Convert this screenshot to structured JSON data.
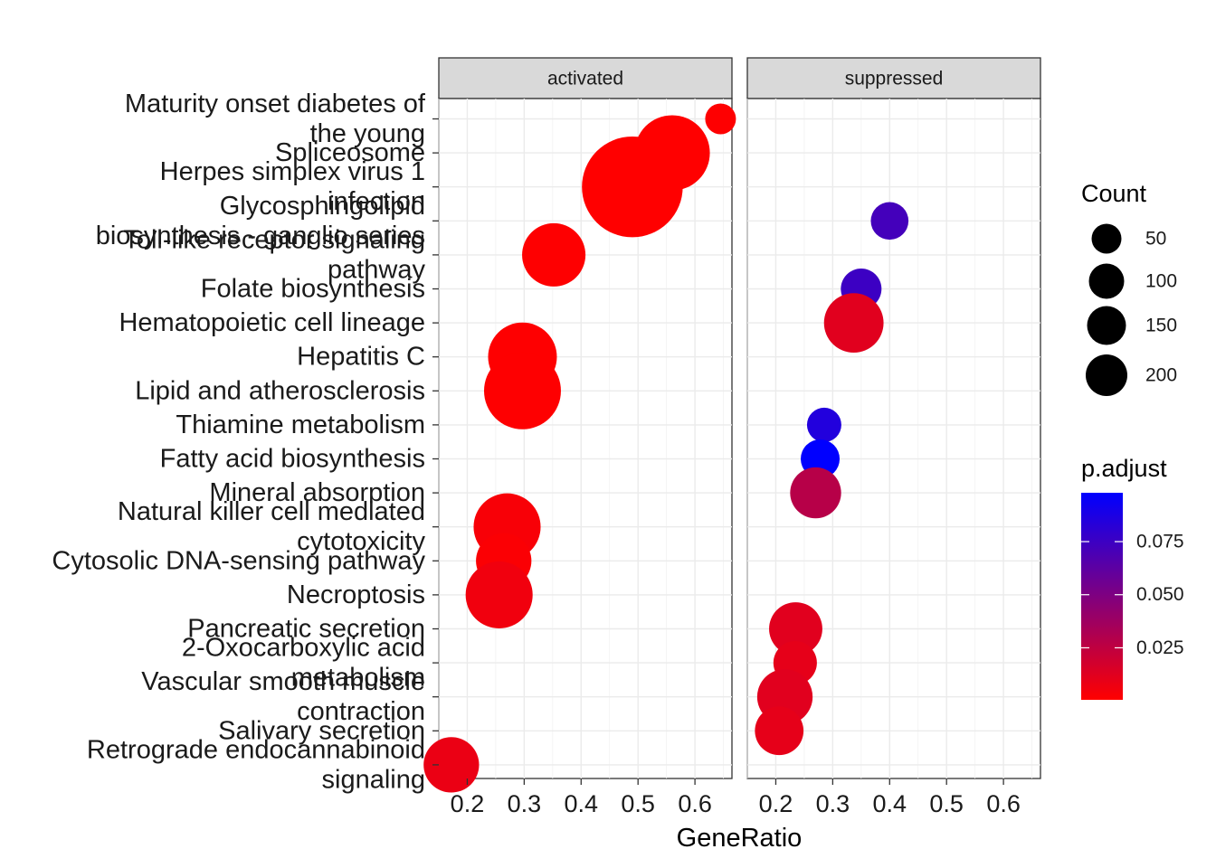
{
  "chart_data": {
    "type": "scatter",
    "title": "",
    "xlabel": "GeneRatio",
    "ylabel": "",
    "xlim": [
      0.15,
      0.665
    ],
    "x_ticks": [
      0.2,
      0.3,
      0.4,
      0.5,
      0.6
    ],
    "x_tick_labels": [
      "0.2",
      "0.3",
      "0.4",
      "0.5",
      "0.6"
    ],
    "grid": true,
    "facets": [
      "activated",
      "suppressed"
    ],
    "categories": [
      [
        "Maturity onset diabetes of",
        "the young"
      ],
      [
        "Spliceosome"
      ],
      [
        "Herpes simplex virus 1",
        "infection"
      ],
      [
        "Glycosphingolipid",
        "biosynthesis - ganglio series"
      ],
      [
        "Toll-like receptor signaling",
        "pathway"
      ],
      [
        "Folate biosynthesis"
      ],
      [
        "Hematopoietic cell lineage"
      ],
      [
        "Hepatitis C"
      ],
      [
        "Lipid and atherosclerosis"
      ],
      [
        "Thiamine metabolism"
      ],
      [
        "Fatty acid biosynthesis"
      ],
      [
        "Mineral absorption"
      ],
      [
        "Natural killer cell mediated",
        "cytotoxicity"
      ],
      [
        "Cytosolic DNA-sensing pathway"
      ],
      [
        "Necroptosis"
      ],
      [
        "Pancreatic secretion"
      ],
      [
        "2-Oxocarboxylic acid",
        "metabolism"
      ],
      [
        "Vascular smooth muscle",
        "contraction"
      ],
      [
        "Salivary secretion"
      ],
      [
        "Retrograde endocannabinoid",
        "signaling"
      ]
    ],
    "points": [
      {
        "facet": "activated",
        "category": 0,
        "x": 0.645,
        "count": 20,
        "p_adjust": 0.001
      },
      {
        "facet": "activated",
        "category": 1,
        "x": 0.56,
        "count": 120,
        "p_adjust": 0.0005
      },
      {
        "facet": "activated",
        "category": 2,
        "x": 0.49,
        "count": 215,
        "p_adjust": 0.0005
      },
      {
        "facet": "activated",
        "category": 4,
        "x": 0.352,
        "count": 85,
        "p_adjust": 0.001
      },
      {
        "facet": "activated",
        "category": 7,
        "x": 0.297,
        "count": 100,
        "p_adjust": 0.0008
      },
      {
        "facet": "activated",
        "category": 8,
        "x": 0.297,
        "count": 125,
        "p_adjust": 0.0008
      },
      {
        "facet": "activated",
        "category": 12,
        "x": 0.27,
        "count": 95,
        "p_adjust": 0.003
      },
      {
        "facet": "activated",
        "category": 13,
        "x": 0.264,
        "count": 65,
        "p_adjust": 0.002
      },
      {
        "facet": "activated",
        "category": 14,
        "x": 0.256,
        "count": 95,
        "p_adjust": 0.006
      },
      {
        "facet": "activated",
        "category": 19,
        "x": 0.172,
        "count": 65,
        "p_adjust": 0.008
      },
      {
        "facet": "suppressed",
        "category": 3,
        "x": 0.4,
        "count": 30,
        "p_adjust": 0.072
      },
      {
        "facet": "suppressed",
        "category": 5,
        "x": 0.35,
        "count": 35,
        "p_adjust": 0.075
      },
      {
        "facet": "suppressed",
        "category": 6,
        "x": 0.337,
        "count": 75,
        "p_adjust": 0.012
      },
      {
        "facet": "suppressed",
        "category": 9,
        "x": 0.285,
        "count": 25,
        "p_adjust": 0.085
      },
      {
        "facet": "suppressed",
        "category": 10,
        "x": 0.278,
        "count": 32,
        "p_adjust": 0.098
      },
      {
        "facet": "suppressed",
        "category": 11,
        "x": 0.27,
        "count": 55,
        "p_adjust": 0.028
      },
      {
        "facet": "suppressed",
        "category": 15,
        "x": 0.235,
        "count": 60,
        "p_adjust": 0.012
      },
      {
        "facet": "suppressed",
        "category": 16,
        "x": 0.234,
        "count": 40,
        "p_adjust": 0.01
      },
      {
        "facet": "suppressed",
        "category": 17,
        "x": 0.216,
        "count": 65,
        "p_adjust": 0.012
      },
      {
        "facet": "suppressed",
        "category": 18,
        "x": 0.206,
        "count": 50,
        "p_adjust": 0.01
      }
    ],
    "size_legend": {
      "title": "Count",
      "values": [
        50,
        100,
        150,
        200
      ],
      "labels": [
        "50",
        "100",
        "150",
        "200"
      ]
    },
    "color_legend": {
      "title": "p.adjust",
      "range": [
        0.0005,
        0.098
      ],
      "ticks": [
        0.025,
        0.05,
        0.075
      ],
      "tick_labels": [
        "0.025",
        "0.050",
        "0.075"
      ],
      "low_color": "#ff0000",
      "high_color": "#0000ff"
    },
    "legend_position": "right"
  }
}
